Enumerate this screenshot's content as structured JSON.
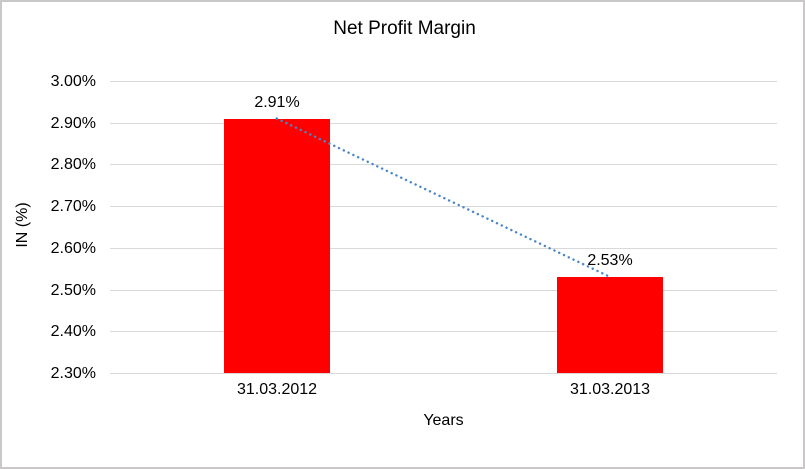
{
  "colors": {
    "bar": "#FF0000",
    "trendline": "#4A86C8",
    "gridline": "#D9D9D9",
    "frame_border": "#C9C7C7",
    "text": "#000000"
  },
  "chart_data": {
    "type": "bar",
    "title": "Net Profit Margin",
    "xlabel": "Years",
    "ylabel": "IN (%)",
    "categories": [
      "31.03.2012",
      "31.03.2013"
    ],
    "series": [
      {
        "name": "Net Profit Margin",
        "values": [
          2.91,
          2.53
        ]
      }
    ],
    "data_labels": [
      "2.91%",
      "2.53%"
    ],
    "y_ticks": [
      "3.00%",
      "2.90%",
      "2.80%",
      "2.70%",
      "2.60%",
      "2.50%",
      "2.40%",
      "2.30%"
    ],
    "y_tick_values": [
      3.0,
      2.9,
      2.8,
      2.7,
      2.6,
      2.5,
      2.4,
      2.3
    ],
    "ylim": [
      2.3,
      3.0
    ],
    "grid": true,
    "legend": "none",
    "bar_color": "#FF0000",
    "trendline": {
      "style": "dotted",
      "color": "#4A86C8",
      "from": 2.91,
      "to": 2.53
    }
  }
}
